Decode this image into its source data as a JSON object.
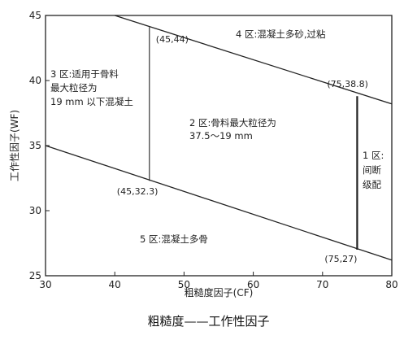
{
  "chart_data": {
    "type": "line",
    "xlabel": "粗糙度因子(CF)",
    "ylabel": "工作性因子(WF)",
    "xlim": [
      30,
      80
    ],
    "ylim": [
      25,
      45
    ],
    "x_ticks": [
      30,
      40,
      50,
      60,
      70,
      80
    ],
    "y_ticks": [
      25,
      30,
      35,
      40,
      45
    ],
    "grid": false,
    "boundaries": [
      {
        "points": [
          [
            40,
            45
          ],
          [
            80,
            38.2
          ]
        ]
      },
      {
        "points": [
          [
            30,
            35
          ],
          [
            80,
            26.2
          ]
        ]
      },
      {
        "points": [
          [
            45,
            44.1
          ],
          [
            45,
            32.3
          ]
        ]
      },
      {
        "points": [
          [
            75,
            38.8
          ],
          [
            75,
            27
          ]
        ]
      }
    ],
    "point_labels": [
      {
        "text": "(45,44)",
        "x": 45,
        "y": 44
      },
      {
        "text": "(75,38.8)",
        "x": 75,
        "y": 38.8
      },
      {
        "text": "(45,32.3)",
        "x": 45,
        "y": 32.3
      },
      {
        "text": "(75,27)",
        "x": 75,
        "y": 27
      }
    ],
    "regions": [
      {
        "lines": [
          "4 区:混凝土多砂,过粘"
        ]
      },
      {
        "lines": [
          "3 区:适用于骨料",
          "最大粒径为",
          "19 mm 以下混凝土"
        ]
      },
      {
        "lines": [
          "2 区:骨料最大粒径为",
          "37.5～19 mm"
        ]
      },
      {
        "lines": [
          "1 区:",
          "间断",
          "级配"
        ]
      },
      {
        "lines": [
          "5 区:混凝土多骨"
        ]
      }
    ]
  },
  "caption": "粗糙度——工作性因子"
}
